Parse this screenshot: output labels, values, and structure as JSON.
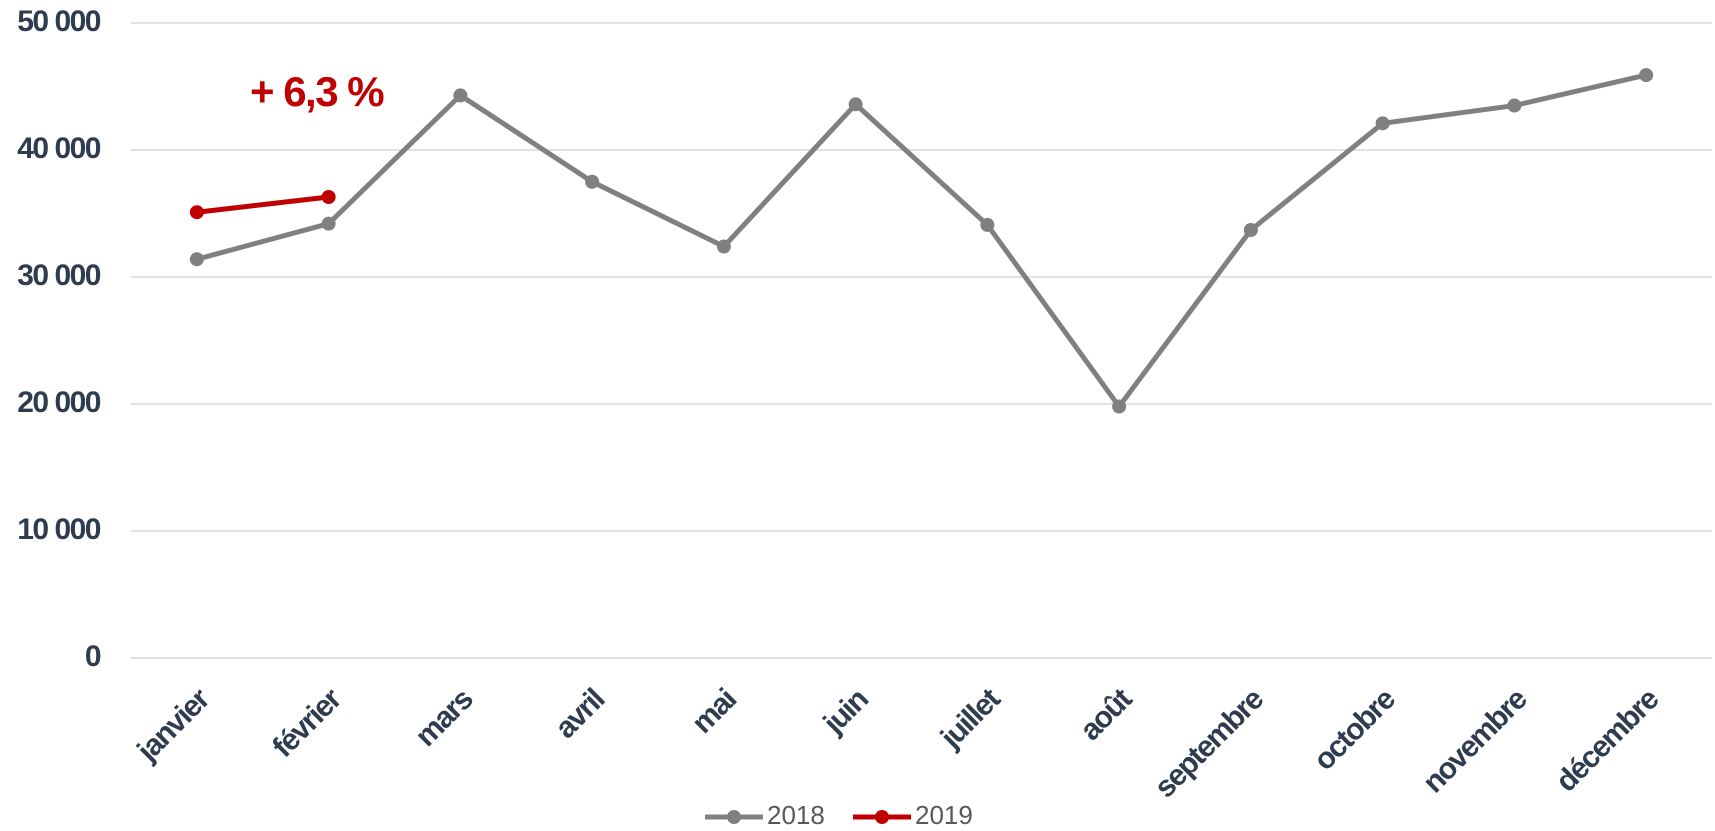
{
  "chart_data": {
    "type": "line",
    "annotation": "+ 6,3 %",
    "categories": [
      "janvier",
      "février",
      "mars",
      "avril",
      "mai",
      "juin",
      "juillet",
      "août",
      "septembre",
      "octobre",
      "novembre",
      "décembre"
    ],
    "series": [
      {
        "name": "2018",
        "color": "#808080",
        "values": [
          31400,
          34200,
          44300,
          37500,
          32400,
          43600,
          34100,
          19800,
          33700,
          42100,
          43500,
          45900
        ]
      },
      {
        "name": "2019",
        "color": "#c00000",
        "values": [
          35100,
          36300,
          null,
          null,
          null,
          null,
          null,
          null,
          null,
          null,
          null,
          null
        ]
      }
    ],
    "ylim": [
      0,
      50000
    ],
    "yticks": [
      {
        "value": 0,
        "label": "0"
      },
      {
        "value": 10000,
        "label": "10 000"
      },
      {
        "value": 20000,
        "label": "20 000"
      },
      {
        "value": 30000,
        "label": "30 000"
      },
      {
        "value": 40000,
        "label": "40 000"
      },
      {
        "value": 50000,
        "label": "50 000"
      }
    ],
    "grid": true,
    "legend": "bottom"
  }
}
